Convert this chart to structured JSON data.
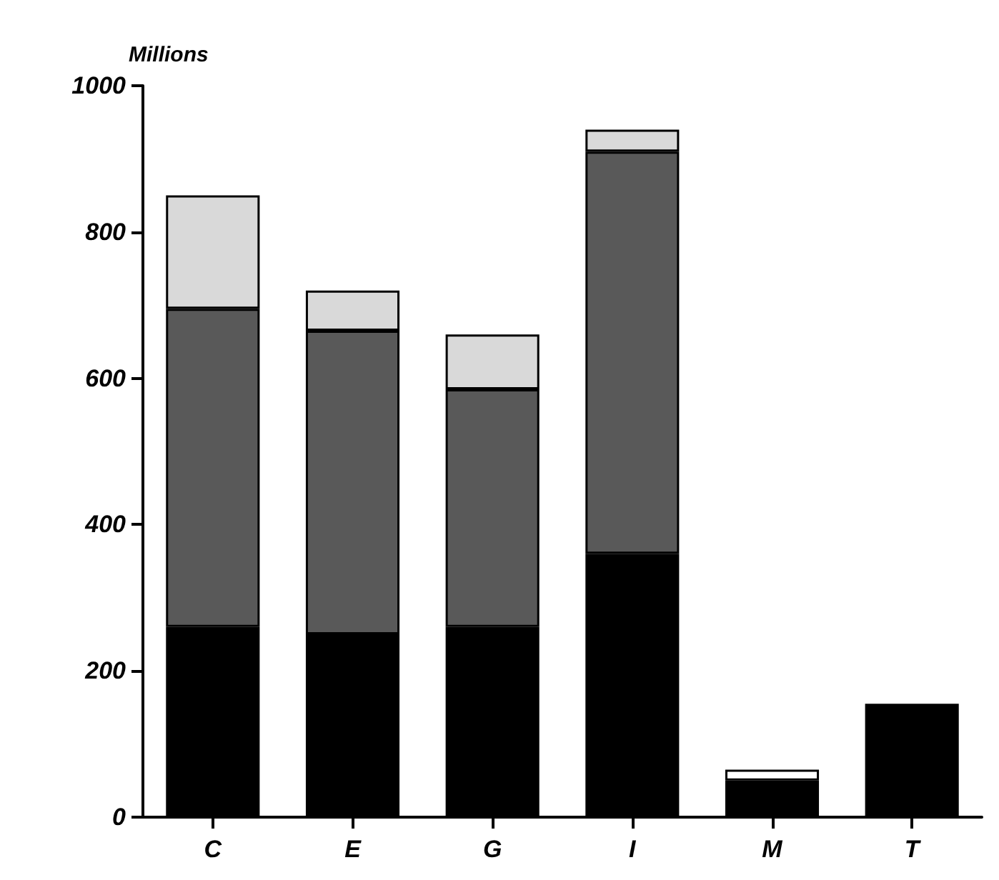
{
  "chart_data": {
    "type": "bar",
    "ylabel": "Millions",
    "categories": [
      "C",
      "E",
      "G",
      "I",
      "M",
      "T"
    ],
    "stacked": true,
    "series": [
      {
        "color": "#000000",
        "values": [
          260,
          250,
          260,
          360,
          50,
          155
        ]
      },
      {
        "color": "#595959",
        "values": [
          435,
          415,
          325,
          550,
          null,
          null
        ]
      },
      {
        "color": "#d9d9d9",
        "values": [
          155,
          55,
          75,
          30,
          null,
          null
        ]
      },
      {
        "color": "#ffffff",
        "values": [
          null,
          null,
          null,
          null,
          15,
          null
        ]
      }
    ],
    "ylim": [
      0,
      1000
    ],
    "yticks": [
      0,
      200,
      400,
      600,
      800,
      1000
    ]
  }
}
